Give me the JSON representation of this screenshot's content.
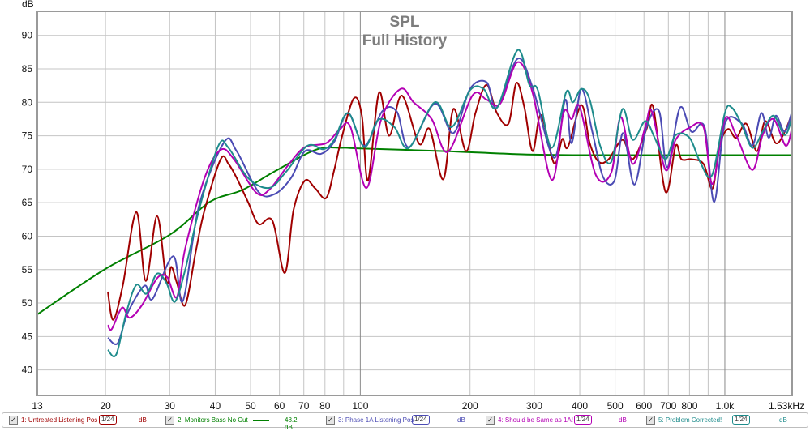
{
  "chart_data": {
    "type": "line",
    "title": "SPL",
    "subtitle": "Full History",
    "ylabel": "dB",
    "xlabel": "",
    "xscale": "log",
    "xlim": [
      13,
      1530
    ],
    "ylim": [
      36.2,
      93.6
    ],
    "grid": true,
    "legend_placement": "bottom",
    "y_ticks": [
      40,
      45,
      50,
      55,
      60,
      65,
      70,
      75,
      80,
      85,
      90
    ],
    "x_ticks": [
      {
        "value": 13,
        "label": "13"
      },
      {
        "value": 20,
        "label": "20"
      },
      {
        "value": 30,
        "label": "30"
      },
      {
        "value": 40,
        "label": "40"
      },
      {
        "value": 50,
        "label": "50"
      },
      {
        "value": 60,
        "label": "60"
      },
      {
        "value": 70,
        "label": "70"
      },
      {
        "value": 80,
        "label": "80"
      },
      {
        "value": 100,
        "label": "100"
      },
      {
        "value": 200,
        "label": "200"
      },
      {
        "value": 300,
        "label": "300"
      },
      {
        "value": 400,
        "label": "400"
      },
      {
        "value": 500,
        "label": "500"
      },
      {
        "value": 600,
        "label": "600"
      },
      {
        "value": 700,
        "label": "700"
      },
      {
        "value": 800,
        "label": "800"
      },
      {
        "value": 1000,
        "label": "1.0k"
      },
      {
        "value": 1530,
        "label": "1.53kHz"
      }
    ],
    "x_grid": [
      20,
      30,
      40,
      50,
      60,
      70,
      80,
      90,
      100,
      200,
      300,
      400,
      500,
      600,
      700,
      800,
      900,
      1000
    ],
    "series": [
      {
        "name": "1: Untreated Listening Pos",
        "color": "#a00000",
        "smoothing": "1/24",
        "unit": "dB",
        "points": [
          [
            20.3,
            51.7
          ],
          [
            21.0,
            47.5
          ],
          [
            22.3,
            52.6
          ],
          [
            24.3,
            63.6
          ],
          [
            25.8,
            53.3
          ],
          [
            27.7,
            63.0
          ],
          [
            29.4,
            53.2
          ],
          [
            30.3,
            55.4
          ],
          [
            31.4,
            53.0
          ],
          [
            33.1,
            49.7
          ],
          [
            35.4,
            57.8
          ],
          [
            37.4,
            63.9
          ],
          [
            41.4,
            71.5
          ],
          [
            43.5,
            70.8
          ],
          [
            45.8,
            68.7
          ],
          [
            49.2,
            65.1
          ],
          [
            52.6,
            61.8
          ],
          [
            57.4,
            62.3
          ],
          [
            62.1,
            54.5
          ],
          [
            65.6,
            63.9
          ],
          [
            70.5,
            68.3
          ],
          [
            75.3,
            67.1
          ],
          [
            80.6,
            65.7
          ],
          [
            84.8,
            69.9
          ],
          [
            88.9,
            74.7
          ],
          [
            96,
            80.6
          ],
          [
            101,
            78.0
          ],
          [
            105,
            68.3
          ],
          [
            112.5,
            81.4
          ],
          [
            120,
            75.0
          ],
          [
            130,
            81.0
          ],
          [
            145,
            73.8
          ],
          [
            155,
            76.0
          ],
          [
            169,
            68.5
          ],
          [
            180,
            79.0
          ],
          [
            195,
            72.7
          ],
          [
            207,
            78.4
          ],
          [
            222,
            82.6
          ],
          [
            237,
            78.4
          ],
          [
            255,
            76.8
          ],
          [
            268,
            82.9
          ],
          [
            282,
            79.2
          ],
          [
            297,
            72.7
          ],
          [
            313,
            78.1
          ],
          [
            340,
            70.9
          ],
          [
            358,
            74.5
          ],
          [
            371,
            73.3
          ],
          [
            404,
            79.6
          ],
          [
            426,
            73.9
          ],
          [
            451,
            71.1
          ],
          [
            480,
            71.5
          ],
          [
            524,
            74.4
          ],
          [
            559,
            71.5
          ],
          [
            610,
            76.0
          ],
          [
            636,
            79.3
          ],
          [
            688,
            66.6
          ],
          [
            733,
            73.5
          ],
          [
            760,
            71.5
          ],
          [
            810,
            71.5
          ],
          [
            874,
            70.8
          ],
          [
            925,
            67.1
          ],
          [
            967,
            73.5
          ],
          [
            1020,
            76.0
          ],
          [
            1074,
            74.7
          ],
          [
            1145,
            76.8
          ],
          [
            1225,
            72.7
          ],
          [
            1290,
            77.2
          ],
          [
            1380,
            73.9
          ],
          [
            1460,
            75.6
          ],
          [
            1530,
            78.4
          ]
        ]
      },
      {
        "name": "2: Monitors Bass No Cut",
        "color": "#008000",
        "value_label": "48.2 dB",
        "points": [
          [
            13,
            48.3
          ],
          [
            20,
            55.1
          ],
          [
            30,
            60.2
          ],
          [
            38.6,
            65.1
          ],
          [
            47.5,
            66.9
          ],
          [
            58.3,
            69.7
          ],
          [
            75.4,
            72.9
          ],
          [
            89,
            73.2
          ],
          [
            100,
            73.1
          ],
          [
            171,
            72.7
          ],
          [
            287,
            72.2
          ],
          [
            480,
            72.1
          ],
          [
            1530,
            72.1
          ]
        ]
      },
      {
        "name": "3: Phase 1A Listening Pos",
        "color": "#4b4bb4",
        "smoothing": "1/24",
        "unit": "dB",
        "points": [
          [
            20.3,
            44.8
          ],
          [
            21.6,
            44.0
          ],
          [
            23,
            48.5
          ],
          [
            25.6,
            52.6
          ],
          [
            26.9,
            50.6
          ],
          [
            30.7,
            57.0
          ],
          [
            32.6,
            50.3
          ],
          [
            36.1,
            64.5
          ],
          [
            42.4,
            74.1
          ],
          [
            45.8,
            72.7
          ],
          [
            52.6,
            66.6
          ],
          [
            58.3,
            66.3
          ],
          [
            64.6,
            68.7
          ],
          [
            70.5,
            72.7
          ],
          [
            78,
            72.3
          ],
          [
            84.8,
            74.1
          ],
          [
            92.6,
            78.4
          ],
          [
            102.6,
            73.5
          ],
          [
            115,
            78.7
          ],
          [
            126,
            78.6
          ],
          [
            136,
            73.3
          ],
          [
            160,
            79.8
          ],
          [
            180,
            75.4
          ],
          [
            200,
            82.0
          ],
          [
            222,
            83.0
          ],
          [
            237,
            79.2
          ],
          [
            270,
            86.5
          ],
          [
            297,
            82.2
          ],
          [
            340,
            71.7
          ],
          [
            365,
            80.4
          ],
          [
            380,
            73.9
          ],
          [
            404,
            82.0
          ],
          [
            433,
            75.6
          ],
          [
            463,
            68.9
          ],
          [
            498,
            68.3
          ],
          [
            526,
            75.4
          ],
          [
            565,
            67.7
          ],
          [
            610,
            76.3
          ],
          [
            660,
            78.7
          ],
          [
            695,
            70.3
          ],
          [
            753,
            79.2
          ],
          [
            810,
            75.6
          ],
          [
            880,
            76.3
          ],
          [
            935,
            65.1
          ],
          [
            1000,
            76.8
          ],
          [
            1110,
            76.9
          ],
          [
            1190,
            73.5
          ],
          [
            1260,
            78.4
          ],
          [
            1320,
            74.7
          ],
          [
            1380,
            78.0
          ],
          [
            1460,
            75.6
          ],
          [
            1530,
            78.7
          ]
        ]
      },
      {
        "name": "4: Should be Same as 1A!",
        "color": "#b400b4",
        "smoothing": "1/24",
        "unit": "dB",
        "points": [
          [
            20.3,
            46.7
          ],
          [
            20.8,
            46.1
          ],
          [
            22.2,
            49.3
          ],
          [
            23.3,
            47.8
          ],
          [
            25.2,
            49.7
          ],
          [
            27.7,
            53.7
          ],
          [
            29.5,
            53.9
          ],
          [
            31.4,
            50.9
          ],
          [
            33.1,
            58.2
          ],
          [
            37.4,
            68.7
          ],
          [
            41.4,
            72.9
          ],
          [
            45,
            71.5
          ],
          [
            51.8,
            66.5
          ],
          [
            56.2,
            66.9
          ],
          [
            63.6,
            70.7
          ],
          [
            70.5,
            73.3
          ],
          [
            80.6,
            73.9
          ],
          [
            88,
            76.0
          ],
          [
            94,
            76.3
          ],
          [
            104,
            67.2
          ],
          [
            114,
            77.4
          ],
          [
            129,
            82.0
          ],
          [
            140,
            80.0
          ],
          [
            157,
            77.5
          ],
          [
            174,
            72.6
          ],
          [
            203,
            81.0
          ],
          [
            222,
            80.4
          ],
          [
            242,
            79.8
          ],
          [
            270,
            86.0
          ],
          [
            297,
            81.4
          ],
          [
            335,
            68.4
          ],
          [
            361,
            78.4
          ],
          [
            380,
            77.5
          ],
          [
            400,
            79.3
          ],
          [
            443,
            69.1
          ],
          [
            488,
            69.5
          ],
          [
            518,
            77.8
          ],
          [
            559,
            70.8
          ],
          [
            605,
            76.3
          ],
          [
            630,
            78.7
          ],
          [
            688,
            69.9
          ],
          [
            733,
            74.4
          ],
          [
            800,
            76.2
          ],
          [
            874,
            76.3
          ],
          [
            925,
            67.8
          ],
          [
            1000,
            77.5
          ],
          [
            1074,
            75.1
          ],
          [
            1190,
            69.9
          ],
          [
            1270,
            75.1
          ],
          [
            1360,
            77.5
          ],
          [
            1470,
            73.5
          ],
          [
            1530,
            76.3
          ]
        ]
      },
      {
        "name": "5: Problem Corrected!",
        "color": "#1e8c8c",
        "smoothing": "1/24",
        "unit": "dB",
        "points": [
          [
            20.3,
            43.0
          ],
          [
            21.4,
            42.3
          ],
          [
            22.8,
            48.5
          ],
          [
            24.3,
            52.7
          ],
          [
            25.9,
            51.4
          ],
          [
            27.7,
            54.4
          ],
          [
            29.4,
            53.0
          ],
          [
            31.0,
            50.2
          ],
          [
            33.1,
            55.0
          ],
          [
            36.1,
            63.9
          ],
          [
            40.8,
            73.5
          ],
          [
            43.5,
            73.2
          ],
          [
            49.2,
            68.7
          ],
          [
            56.2,
            67.2
          ],
          [
            62.3,
            69.5
          ],
          [
            71.6,
            73.5
          ],
          [
            79.3,
            73.0
          ],
          [
            84.8,
            74.4
          ],
          [
            92.6,
            78.4
          ],
          [
            102.6,
            73.3
          ],
          [
            112,
            77.4
          ],
          [
            124,
            76.3
          ],
          [
            136,
            73.2
          ],
          [
            160,
            80.0
          ],
          [
            178,
            76.3
          ],
          [
            200,
            81.8
          ],
          [
            218,
            82.0
          ],
          [
            237,
            79.2
          ],
          [
            270,
            87.8
          ],
          [
            291,
            82.6
          ],
          [
            307,
            81.8
          ],
          [
            335,
            73.2
          ],
          [
            367,
            81.5
          ],
          [
            383,
            80.0
          ],
          [
            404,
            82.0
          ],
          [
            426,
            80.4
          ],
          [
            455,
            73.5
          ],
          [
            488,
            71.1
          ],
          [
            524,
            79.0
          ],
          [
            559,
            74.4
          ],
          [
            605,
            77.2
          ],
          [
            642,
            74.7
          ],
          [
            688,
            71.5
          ],
          [
            733,
            75.1
          ],
          [
            800,
            74.7
          ],
          [
            855,
            71.1
          ],
          [
            922,
            69.1
          ],
          [
            1000,
            78.4
          ],
          [
            1045,
            79.2
          ],
          [
            1110,
            76.8
          ],
          [
            1190,
            73.2
          ],
          [
            1270,
            75.6
          ],
          [
            1360,
            78.0
          ],
          [
            1460,
            75.1
          ],
          [
            1530,
            77.8
          ]
        ]
      }
    ]
  },
  "legend": {
    "check_mark": "✓",
    "entries": [
      {
        "label": "1: Untreated Listening Pos",
        "smoothing": "1/24",
        "value": "dB"
      },
      {
        "label": "2: Monitors Bass No Cut",
        "value": "48.2 dB"
      },
      {
        "label": "3: Phase 1A Listening Pos",
        "smoothing": "1/24",
        "value": "dB"
      },
      {
        "label": "4: Should be Same as 1A!",
        "smoothing": "1/24",
        "value": "dB"
      },
      {
        "label": "5: Problem Corrected!",
        "smoothing": "1/24",
        "value": "dB"
      }
    ]
  }
}
